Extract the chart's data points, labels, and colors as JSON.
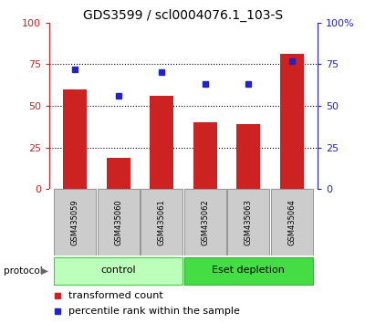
{
  "title": "GDS3599 / scl0004076.1_103-S",
  "samples": [
    "GSM435059",
    "GSM435060",
    "GSM435061",
    "GSM435062",
    "GSM435063",
    "GSM435064"
  ],
  "bar_values": [
    60,
    19,
    56,
    40,
    39,
    81
  ],
  "dot_values": [
    72,
    56,
    70,
    63,
    63,
    77
  ],
  "bar_color": "#cc2222",
  "dot_color": "#2222cc",
  "ylim": [
    0,
    100
  ],
  "yticks": [
    0,
    25,
    50,
    75,
    100
  ],
  "ytick_labels_left": [
    "0",
    "25",
    "50",
    "75",
    "100"
  ],
  "ytick_labels_right": [
    "0",
    "25",
    "50",
    "75",
    "100%"
  ],
  "groups": [
    {
      "label": "control",
      "start": 0,
      "end": 3,
      "color": "#bbffbb",
      "border_color": "#44cc44"
    },
    {
      "label": "Eset depletion",
      "start": 3,
      "end": 6,
      "color": "#44dd44",
      "border_color": "#44aa44"
    }
  ],
  "protocol_label": "protocol",
  "legend_items": [
    {
      "color": "#cc2222",
      "label": "transformed count"
    },
    {
      "color": "#2222cc",
      "label": "percentile rank within the sample"
    }
  ],
  "sample_box_color": "#cccccc",
  "sample_box_edge": "#888888",
  "bar_width": 0.55,
  "tick_label_fontsize": 8,
  "title_fontsize": 10,
  "axis_label_color_left": "#cc2222",
  "axis_label_color_right": "#2222cc",
  "grid_color": "black",
  "sample_fontsize": 6,
  "group_fontsize": 8,
  "legend_fontsize": 8
}
